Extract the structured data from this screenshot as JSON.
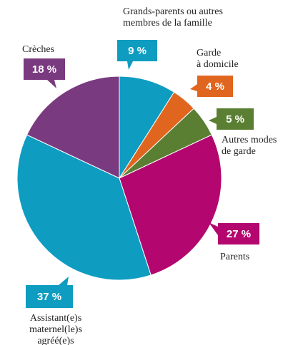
{
  "chart_data": {
    "type": "pie",
    "slices": [
      {
        "label_lines": [
          "Grands-parents ou autres",
          "membres de la famille"
        ],
        "value": 9,
        "value_label": "9 %",
        "color": "#0e9cc1"
      },
      {
        "label_lines": [
          "Garde",
          "à domicile"
        ],
        "value": 4,
        "value_label": "4 %",
        "color": "#e0661f"
      },
      {
        "label_lines": [
          "Autres modes",
          "de garde"
        ],
        "value": 5,
        "value_label": "5 %",
        "color": "#5a7f33"
      },
      {
        "label_lines": [
          "Parents"
        ],
        "value": 27,
        "value_label": "27 %",
        "color": "#b3066e"
      },
      {
        "label_lines": [
          "Assistant(e)s",
          "maternel(le)s",
          "agréé(e)s"
        ],
        "value": 37,
        "value_label": "37 %",
        "color": "#0e9cc1"
      },
      {
        "label_lines": [
          "Crèches"
        ],
        "value": 18,
        "value_label": "18 %",
        "color": "#7a3a7f"
      }
    ],
    "start_angle_deg": 0,
    "direction": "clockwise"
  }
}
